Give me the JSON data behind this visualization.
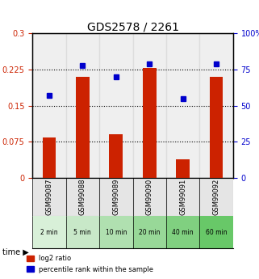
{
  "title": "GDS2578 / 2261",
  "samples": [
    "GSM99087",
    "GSM99088",
    "GSM99089",
    "GSM99090",
    "GSM99091",
    "GSM99092"
  ],
  "time_labels": [
    "2 min",
    "5 min",
    "10 min",
    "20 min",
    "40 min",
    "60 min"
  ],
  "log2_ratio": [
    0.083,
    0.21,
    0.09,
    0.228,
    0.038,
    0.21
  ],
  "percentile_rank": [
    57,
    78,
    70,
    79,
    55,
    79
  ],
  "bar_color": "#cc2200",
  "dot_color": "#0000cc",
  "left_ylim": [
    0,
    0.3
  ],
  "right_ylim": [
    0,
    100
  ],
  "left_yticks": [
    0,
    0.075,
    0.15,
    0.225,
    0.3
  ],
  "left_yticklabels": [
    "0",
    "0.075",
    "0.15",
    "0.225",
    "0.3"
  ],
  "right_yticks": [
    0,
    25,
    50,
    75,
    100
  ],
  "right_yticklabels": [
    "0",
    "25",
    "50",
    "75",
    "100%"
  ],
  "hlines": [
    0.075,
    0.15,
    0.225
  ],
  "time_bg_colors": [
    "#e8f8e8",
    "#d0f0d0",
    "#b8e8b8",
    "#a0e0a0",
    "#88d888",
    "#70d070"
  ],
  "sample_bg_color": "#cccccc",
  "bar_width": 0.4
}
